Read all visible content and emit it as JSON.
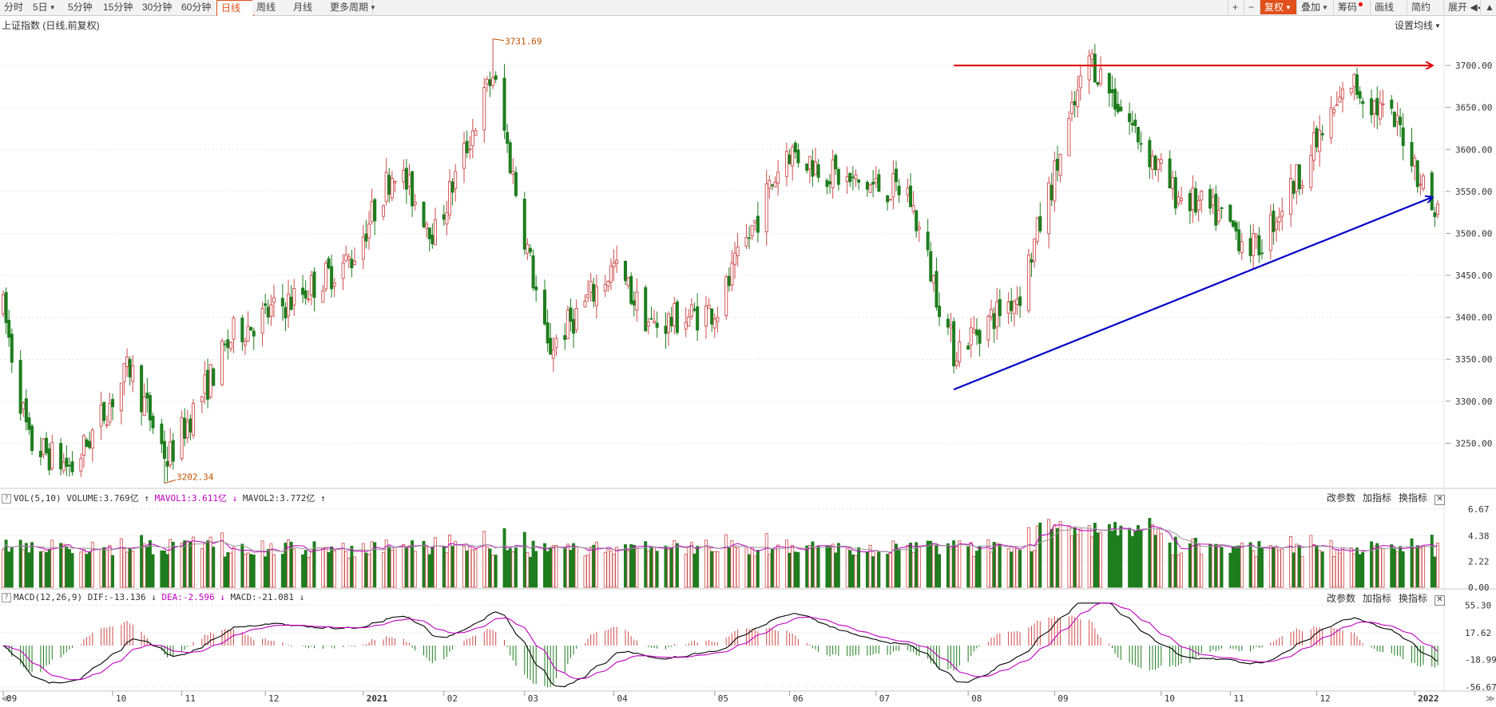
{
  "toolbar": {
    "left_items": [
      {
        "label": "分时",
        "dropdown": false,
        "active": false
      },
      {
        "label": "5日",
        "dropdown": true,
        "active": false
      },
      {
        "label": "5分钟",
        "dropdown": false,
        "active": false
      },
      {
        "label": "15分钟",
        "dropdown": false,
        "active": false
      },
      {
        "label": "30分钟",
        "dropdown": false,
        "active": false
      },
      {
        "label": "60分钟",
        "dropdown": false,
        "active": false
      },
      {
        "label": "日线",
        "dropdown": false,
        "active": true
      },
      {
        "label": "周线",
        "dropdown": false,
        "active": false
      },
      {
        "label": "月线",
        "dropdown": false,
        "active": false
      },
      {
        "label": "更多周期",
        "dropdown": true,
        "active": false
      }
    ],
    "right_items": [
      {
        "label": "+",
        "dropdown": false,
        "accent": false,
        "dot": false
      },
      {
        "label": "−",
        "dropdown": false,
        "accent": false,
        "dot": false
      },
      {
        "label": "复权",
        "dropdown": true,
        "accent": true,
        "dot": false
      },
      {
        "label": "叠加",
        "dropdown": true,
        "accent": false,
        "dot": false
      },
      {
        "label": "筹码",
        "dropdown": false,
        "accent": false,
        "dot": true
      },
      {
        "label": "画线",
        "dropdown": false,
        "accent": false,
        "dot": false
      },
      {
        "label": "简约",
        "dropdown": false,
        "accent": false,
        "dot": false
      },
      {
        "label": "展开 ◀◀",
        "dropdown": false,
        "accent": false,
        "dot": false
      },
      {
        "label": "▲",
        "dropdown": false,
        "accent": false,
        "dot": false
      }
    ]
  },
  "header": {
    "title": "上证指数 (日线,前复权)",
    "ma_setting": "设置均线"
  },
  "volume_panel": {
    "q": "?",
    "name": "VOL(5,10)",
    "volume": "VOLUME:3.769亿 ↑",
    "mavol1": "MAVOL1:3.611亿 ↓",
    "mavol2": "MAVOL2:3.772亿 ↑"
  },
  "macd_panel": {
    "q": "?",
    "name": "MACD(12,26,9)",
    "dif": "DIF:-13.136 ↓",
    "dea": "DEA:-2.596 ↓",
    "macd": "MACD:-21.081 ↓"
  },
  "indicator_tools": {
    "change_params": "改参数",
    "add_indicator": "加指标",
    "swap_indicator": "换指标",
    "close": "✕"
  },
  "bottom_bar": {
    "scroll_left": "≪",
    "scroll_right": "≫"
  },
  "colors": {
    "up": "#d04a4a",
    "down": "#1e7d1e",
    "accent": "#e0501a",
    "ma_magenta": "#c000c0",
    "resistance_line": "#e00000",
    "support_line": "#0000c8",
    "grid": "#e4e4e4"
  },
  "chart_data": [
    {
      "type": "candlestick",
      "title": "上证指数 (日线,前复权)",
      "y_ticks": [
        3250,
        3300,
        3350,
        3400,
        3450,
        3500,
        3550,
        3600,
        3650,
        3700
      ],
      "y_tick_labels": [
        "3250.00",
        "3300.00",
        "3350.00",
        "3400.00",
        "3450.00",
        "3500.00",
        "3550.00",
        "3600.00",
        "3650.00",
        "3700.00"
      ],
      "ylim": [
        3200,
        3740
      ],
      "x_labels": [
        "09",
        "10",
        "11",
        "12",
        "2021",
        "02",
        "03",
        "04",
        "05",
        "06",
        "07",
        "08",
        "09",
        "10",
        "11",
        "12",
        "2022"
      ],
      "period": [
        "2020-09",
        "2022-01"
      ],
      "annotations": [
        {
          "label": "3731.69",
          "kind": "period_high",
          "date": "2021-02-18",
          "value": 3731.69
        },
        {
          "label": "3202.34",
          "kind": "period_low",
          "date": "2020-10-27",
          "value": 3202.34
        }
      ],
      "trend_lines": [
        {
          "name": "resistance",
          "color": "#e00000",
          "from": {
            "date": "2021-07-28",
            "value": 3700
          },
          "to": {
            "date": "2022-01-10",
            "value": 3700
          }
        },
        {
          "name": "support",
          "color": "#0000c8",
          "from": {
            "date": "2021-07-28",
            "value": 3314
          },
          "to": {
            "date": "2022-01-10",
            "value": 3543
          }
        }
      ],
      "key_levels": [
        {
          "date": "2020-09-01",
          "close": 3410
        },
        {
          "date": "2020-09-10",
          "close": 3250
        },
        {
          "date": "2020-09-25",
          "close": 3220
        },
        {
          "date": "2020-10-15",
          "close": 3340
        },
        {
          "date": "2020-10-28",
          "close": 3230
        },
        {
          "date": "2020-11-20",
          "close": 3380
        },
        {
          "date": "2020-12-10",
          "close": 3420
        },
        {
          "date": "2020-12-31",
          "close": 3470
        },
        {
          "date": "2021-01-15",
          "close": 3580
        },
        {
          "date": "2021-01-29",
          "close": 3500
        },
        {
          "date": "2021-02-18",
          "close": 3690
        },
        {
          "date": "2021-03-09",
          "close": 3360
        },
        {
          "date": "2021-04-01",
          "close": 3460
        },
        {
          "date": "2021-04-14",
          "close": 3390
        },
        {
          "date": "2021-05-07",
          "close": 3410
        },
        {
          "date": "2021-05-31",
          "close": 3600
        },
        {
          "date": "2021-06-22",
          "close": 3560
        },
        {
          "date": "2021-07-12",
          "close": 3550
        },
        {
          "date": "2021-07-28",
          "close": 3360
        },
        {
          "date": "2021-08-20",
          "close": 3430
        },
        {
          "date": "2021-09-13",
          "close": 3710
        },
        {
          "date": "2021-10-12",
          "close": 3550
        },
        {
          "date": "2021-10-28",
          "close": 3520
        },
        {
          "date": "2021-11-10",
          "close": 3480
        },
        {
          "date": "2021-12-13",
          "close": 3680
        },
        {
          "date": "2021-12-31",
          "close": 3620
        },
        {
          "date": "2022-01-10",
          "close": 3530
        }
      ]
    },
    {
      "type": "bar",
      "title": "VOL(5,10)",
      "unit": "亿",
      "y_ticks": [
        0.0,
        2.22,
        4.38,
        6.67
      ],
      "y_tick_labels": [
        "0.00",
        "2.22",
        "4.38",
        "6.67"
      ],
      "ylim": [
        0,
        7.2
      ],
      "series": [
        {
          "name": "MAVOL1",
          "last": 3.611
        },
        {
          "name": "MAVOL2",
          "last": 3.772
        }
      ],
      "last_volume": 3.769
    },
    {
      "type": "line",
      "title": "MACD(12,26,9)",
      "y_ticks": [
        -56.67,
        -18.99,
        17.62,
        55.3
      ],
      "y_tick_labels": [
        "-56.67",
        "-18.99",
        "17.62",
        "55.30"
      ],
      "ylim": [
        -60,
        60
      ],
      "series": [
        {
          "name": "DIF",
          "last": -13.136
        },
        {
          "name": "DEA",
          "last": -2.596
        },
        {
          "name": "MACD",
          "last": -21.081
        }
      ]
    }
  ]
}
